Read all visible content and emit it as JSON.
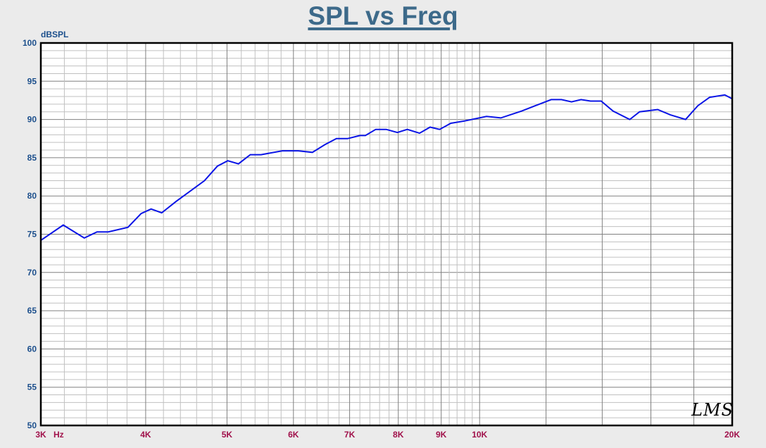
{
  "header": {
    "title": "SPL vs Freq"
  },
  "axes": {
    "y_unit": "dBSPL",
    "x_unit": "Hz"
  },
  "logo": "LMS",
  "chart_data": {
    "type": "line",
    "title": "SPL vs Freq",
    "xlabel": "Hz",
    "ylabel": "dBSPL",
    "xscale": "log",
    "xlim": [
      3000,
      20000
    ],
    "ylim": [
      50,
      100
    ],
    "grid": true,
    "y_ticks": [
      100,
      95,
      90,
      85,
      80,
      75,
      70,
      65,
      60,
      55,
      50
    ],
    "x_ticks": [
      {
        "label": "3K",
        "value": 3000
      },
      {
        "label": "4K",
        "value": 4000
      },
      {
        "label": "5K",
        "value": 5000
      },
      {
        "label": "6K",
        "value": 6000
      },
      {
        "label": "7K",
        "value": 7000
      },
      {
        "label": "8K",
        "value": 8000
      },
      {
        "label": "9K",
        "value": 9000
      },
      {
        "label": "10K",
        "value": 10000
      },
      {
        "label": "20K",
        "value": 20000
      }
    ],
    "series": [
      {
        "name": "SPL",
        "color": "#0a14e6",
        "points": [
          [
            3000,
            74.2
          ],
          [
            3190,
            76.2
          ],
          [
            3380,
            74.5
          ],
          [
            3500,
            75.3
          ],
          [
            3610,
            75.3
          ],
          [
            3810,
            75.9
          ],
          [
            3950,
            77.7
          ],
          [
            4060,
            78.3
          ],
          [
            4180,
            77.8
          ],
          [
            4350,
            79.3
          ],
          [
            4700,
            82.0
          ],
          [
            4870,
            83.9
          ],
          [
            5010,
            84.6
          ],
          [
            5160,
            84.2
          ],
          [
            5330,
            85.4
          ],
          [
            5490,
            85.4
          ],
          [
            5820,
            85.9
          ],
          [
            6080,
            85.9
          ],
          [
            6320,
            85.7
          ],
          [
            6540,
            86.7
          ],
          [
            6750,
            87.5
          ],
          [
            6960,
            87.5
          ],
          [
            7200,
            87.9
          ],
          [
            7310,
            87.9
          ],
          [
            7520,
            88.7
          ],
          [
            7740,
            88.7
          ],
          [
            7980,
            88.3
          ],
          [
            8200,
            88.7
          ],
          [
            8480,
            88.2
          ],
          [
            8730,
            89.0
          ],
          [
            8960,
            88.7
          ],
          [
            9240,
            89.5
          ],
          [
            9590,
            89.8
          ],
          [
            10190,
            90.4
          ],
          [
            10600,
            90.2
          ],
          [
            11220,
            91.1
          ],
          [
            11650,
            91.8
          ],
          [
            12170,
            92.6
          ],
          [
            12520,
            92.6
          ],
          [
            12870,
            92.3
          ],
          [
            13210,
            92.6
          ],
          [
            13560,
            92.4
          ],
          [
            13960,
            92.4
          ],
          [
            14420,
            91.1
          ],
          [
            15100,
            90.0
          ],
          [
            15510,
            91.0
          ],
          [
            16300,
            91.3
          ],
          [
            16880,
            90.6
          ],
          [
            17600,
            90.0
          ],
          [
            18200,
            91.8
          ],
          [
            18800,
            92.9
          ],
          [
            19600,
            93.2
          ],
          [
            20000,
            92.7
          ]
        ]
      }
    ]
  }
}
